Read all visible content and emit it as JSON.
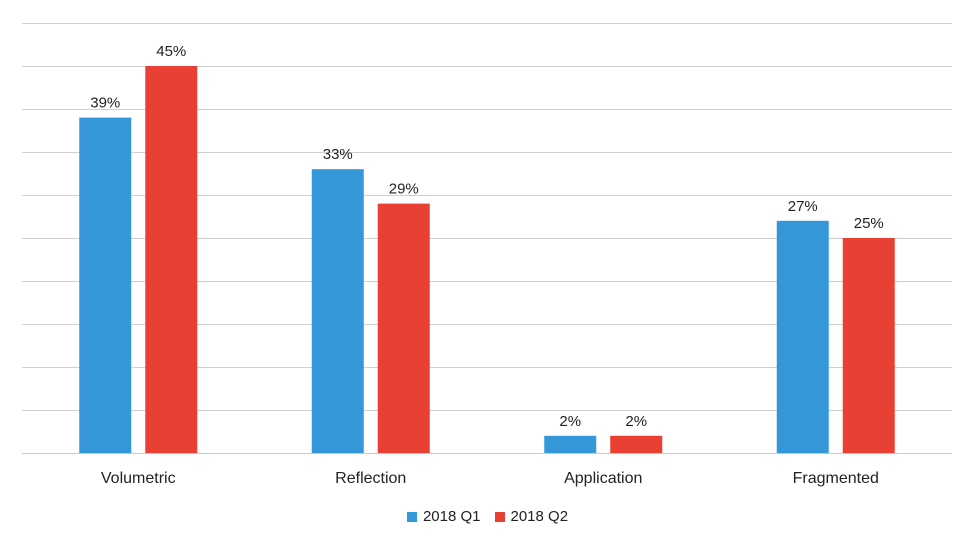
{
  "chart_data": {
    "type": "bar",
    "categories": [
      "Volumetric",
      "Reflection",
      "Application",
      "Fragmented"
    ],
    "series": [
      {
        "name": "2018 Q1",
        "values": [
          39,
          33,
          2,
          27
        ],
        "labels": [
          "39%",
          "33%",
          "2%",
          "27%"
        ],
        "color": "#3498d8"
      },
      {
        "name": "2018 Q2",
        "values": [
          45,
          29,
          2,
          25
        ],
        "labels": [
          "45%",
          "29%",
          "2%",
          "25%"
        ],
        "color": "#e84133"
      }
    ],
    "ylim": [
      0,
      50
    ],
    "grid": true,
    "legend_position": "bottom"
  },
  "colors": {
    "gridline": "#d0d0d0",
    "baseline": "#c8c8c8"
  }
}
